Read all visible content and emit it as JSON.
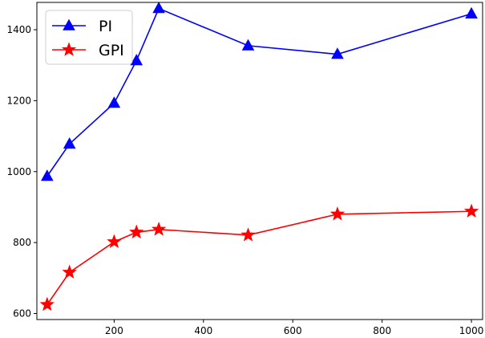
{
  "chart_data": {
    "type": "line",
    "title": "",
    "xlabel": "",
    "ylabel": "",
    "xlim": [
      27,
      1025
    ],
    "ylim": [
      583,
      1477
    ],
    "x_ticks": [
      200,
      400,
      600,
      800,
      1000
    ],
    "y_ticks": [
      600,
      800,
      1000,
      1200,
      1400
    ],
    "grid": false,
    "legend_position": "top-left",
    "x": [
      50,
      100,
      200,
      250,
      300,
      500,
      700,
      1000
    ],
    "series": [
      {
        "name": "PI",
        "color": "#0000ff",
        "marker": "triangle",
        "values": [
          987,
          1078,
          1193,
          1313,
          1460,
          1355,
          1331,
          1445
        ]
      },
      {
        "name": "GPI",
        "color": "#ff0000",
        "marker": "star",
        "values": [
          625,
          716,
          802,
          829,
          837,
          821,
          880,
          888
        ]
      }
    ]
  }
}
